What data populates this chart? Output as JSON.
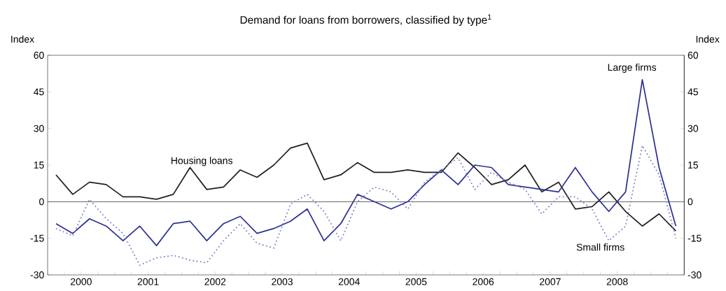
{
  "chart_data": {
    "type": "line",
    "title": "Demand for loans from borrowers, classified by type$^{1}$",
    "ylabel": "Index",
    "y2label": "Index",
    "x": [
      2000.125,
      2000.375,
      2000.625,
      2000.875,
      2001.125,
      2001.375,
      2001.625,
      2001.875,
      2002.125,
      2002.375,
      2002.625,
      2002.875,
      2003.125,
      2003.375,
      2003.625,
      2003.875,
      2004.125,
      2004.375,
      2004.625,
      2004.875,
      2005.125,
      2005.375,
      2005.625,
      2005.875,
      2006.125,
      2006.375,
      2006.625,
      2006.875,
      2007.125,
      2007.375,
      2007.625,
      2007.875,
      2008.125,
      2008.375,
      2008.625,
      2008.875,
      2009.125,
      2009.375
    ],
    "series": [
      {
        "name": "Housing loans",
        "color": "#231f20",
        "line_style": "solid",
        "values": [
          11,
          3,
          8,
          7,
          2,
          2,
          1,
          3,
          14,
          5,
          6,
          13,
          10,
          15,
          22,
          24,
          9,
          11,
          16,
          12,
          12,
          13,
          12,
          12,
          20,
          14,
          7,
          9,
          15,
          4,
          8,
          -3,
          -2,
          4,
          -4,
          -10,
          -5,
          -12
        ]
      },
      {
        "name": "Large firms",
        "color": "#2e3192",
        "line_style": "solid",
        "values": [
          -9,
          -13,
          -7,
          -10,
          -16,
          -10,
          -18,
          -9,
          -8,
          -16,
          -9,
          -6,
          -13,
          -11,
          -8,
          -3,
          -16,
          -9,
          3,
          0,
          -3,
          0,
          7,
          13,
          7,
          15,
          14,
          7,
          6,
          5,
          4,
          14,
          4,
          -4,
          4,
          50,
          14,
          -10
        ]
      },
      {
        "name": "Small firms",
        "color": "#8080c8",
        "line_style": "dotted",
        "values": [
          -11,
          -14,
          1,
          -7,
          -13,
          -26,
          -23,
          -22,
          -24,
          -25,
          -16,
          -9,
          -17,
          -19,
          -1,
          3,
          -4,
          -16,
          0,
          6,
          4,
          -3,
          8,
          13,
          18,
          5,
          12,
          8,
          5,
          -5,
          2,
          2,
          -3,
          -16,
          -10,
          23,
          11,
          -15
        ]
      }
    ],
    "xlim": [
      2000,
      2009.5
    ],
    "xticks": [
      {
        "value": 2000,
        "label": null
      },
      {
        "value": 2000.25,
        "label": null
      },
      {
        "value": 2000.5,
        "label": "2000"
      },
      {
        "value": 2000.75,
        "label": null
      },
      {
        "value": 2001,
        "label": null
      },
      {
        "value": 2001.25,
        "label": null
      },
      {
        "value": 2001.5,
        "label": "2001"
      },
      {
        "value": 2001.75,
        "label": null
      },
      {
        "value": 2002,
        "label": null
      },
      {
        "value": 2002.25,
        "label": null
      },
      {
        "value": 2002.5,
        "label": "2002"
      },
      {
        "value": 2002.75,
        "label": null
      },
      {
        "value": 2003,
        "label": null
      },
      {
        "value": 2003.25,
        "label": null
      },
      {
        "value": 2003.5,
        "label": "2003"
      },
      {
        "value": 2003.75,
        "label": null
      },
      {
        "value": 2004,
        "label": null
      },
      {
        "value": 2004.25,
        "label": null
      },
      {
        "value": 2004.5,
        "label": "2004"
      },
      {
        "value": 2004.75,
        "label": null
      },
      {
        "value": 2005,
        "label": null
      },
      {
        "value": 2005.25,
        "label": null
      },
      {
        "value": 2005.5,
        "label": "2005"
      },
      {
        "value": 2005.75,
        "label": null
      },
      {
        "value": 2006,
        "label": null
      },
      {
        "value": 2006.25,
        "label": null
      },
      {
        "value": 2006.5,
        "label": "2006"
      },
      {
        "value": 2006.75,
        "label": null
      },
      {
        "value": 2007,
        "label": null
      },
      {
        "value": 2007.25,
        "label": null
      },
      {
        "value": 2007.5,
        "label": "2007"
      },
      {
        "value": 2007.75,
        "label": null
      },
      {
        "value": 2008,
        "label": null
      },
      {
        "value": 2008.25,
        "label": null
      },
      {
        "value": 2008.5,
        "label": "2008"
      },
      {
        "value": 2008.75,
        "label": null
      },
      {
        "value": 2009,
        "label": null
      },
      {
        "value": 2009.25,
        "label": null
      }
    ],
    "ylim": [
      -30,
      60
    ],
    "yticks": [
      -30,
      -15,
      0,
      15,
      30,
      45,
      60
    ],
    "y2lim": [
      -30,
      60
    ],
    "y2ticks": [
      -30,
      -15,
      0,
      15,
      30,
      45,
      60
    ],
    "ref_lines": [
      {
        "axis": "y",
        "value": 0,
        "color": "#231f20"
      }
    ],
    "grid": false,
    "legend": false
  }
}
